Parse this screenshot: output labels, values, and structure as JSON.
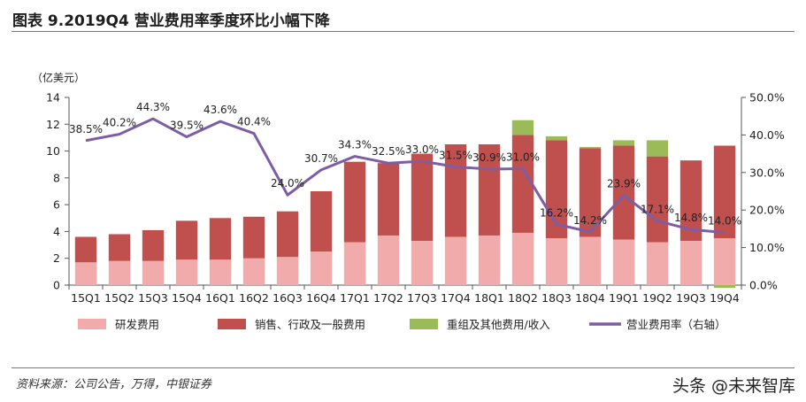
{
  "header": {
    "title": "图表 9.2019Q4 营业费用率季度环比小幅下降"
  },
  "footer": {
    "source": "资料来源：公司公告，万得，中银证券",
    "watermark": "头条 @未来智库"
  },
  "colors": {
    "rd": "#F2ABAB",
    "sales": "#C0504D",
    "restructuring": "#9BBB59",
    "ratio": "#7D5DA4",
    "text": "#222222"
  },
  "chart_data": {
    "type": "bar",
    "categories": [
      "15Q1",
      "15Q2",
      "15Q3",
      "15Q4",
      "16Q1",
      "16Q2",
      "16Q3",
      "16Q4",
      "17Q1",
      "17Q2",
      "17Q3",
      "17Q4",
      "18Q1",
      "18Q2",
      "18Q3",
      "18Q4",
      "19Q1",
      "19Q2",
      "19Q3",
      "19Q4"
    ],
    "y_left_unit": "（亿美元）",
    "ylim": [
      0,
      14
    ],
    "yticks": [
      "0",
      "2",
      "4",
      "6",
      "8",
      "10",
      "12",
      "14"
    ],
    "y2lim": [
      0,
      50
    ],
    "y2ticks": [
      "0.0%",
      "10.0%",
      "20.0%",
      "30.0%",
      "40.0%",
      "50.0%"
    ],
    "stacked": true,
    "series": [
      {
        "name": "研发费用",
        "type": "bar",
        "values": [
          1.7,
          1.8,
          1.8,
          1.9,
          1.9,
          2.0,
          2.1,
          2.5,
          3.2,
          3.7,
          3.3,
          3.6,
          3.7,
          3.9,
          3.5,
          3.6,
          3.4,
          3.2,
          3.3,
          3.5
        ]
      },
      {
        "name": "销售、行政及一般费用",
        "type": "bar",
        "values": [
          1.9,
          2.0,
          2.3,
          2.9,
          3.1,
          3.1,
          3.4,
          4.5,
          6.0,
          5.4,
          6.5,
          6.9,
          6.8,
          7.3,
          7.3,
          6.6,
          7.0,
          6.4,
          6.0,
          6.9
        ]
      },
      {
        "name": "重组及其他费用/收入",
        "type": "bar",
        "values": [
          0,
          0,
          0,
          0,
          0,
          0,
          0,
          0,
          0,
          0,
          0,
          0,
          0,
          1.1,
          0.3,
          0.1,
          0.4,
          1.2,
          0,
          -0.2
        ]
      },
      {
        "name": "营业费用率（右轴）",
        "type": "line",
        "axis": "right",
        "values": [
          38.5,
          40.2,
          44.3,
          39.5,
          43.6,
          40.4,
          24.0,
          30.7,
          34.3,
          32.5,
          33.0,
          31.5,
          30.9,
          31.0,
          16.2,
          14.2,
          23.9,
          17.1,
          14.8,
          14.0
        ],
        "labels": [
          "38.5%",
          "40.2%",
          "44.3%",
          "39.5%",
          "43.6%",
          "40.4%",
          "24.0%",
          "30.7%",
          "34.3%",
          "32.5%",
          "33.0%",
          "31.5%",
          "30.9%",
          "31.0%",
          "16.2%",
          "14.2%",
          "23.9%",
          "17.1%",
          "14.8%",
          "14.0%"
        ]
      }
    ],
    "legend_position": "bottom",
    "grid": false
  }
}
